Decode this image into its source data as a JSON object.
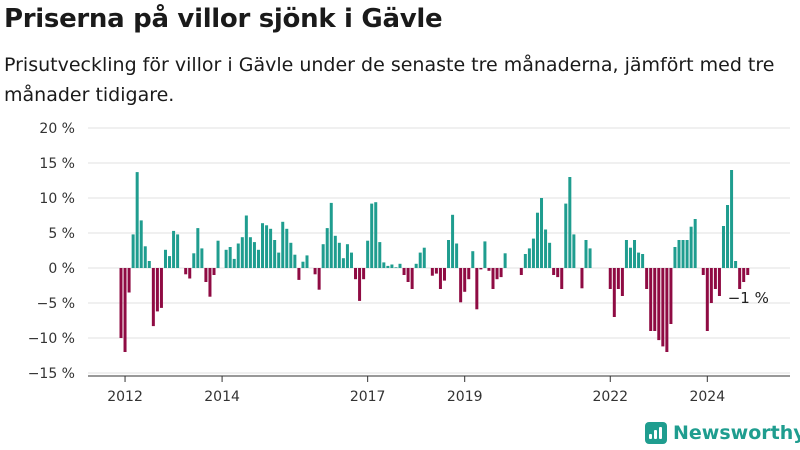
{
  "header": {
    "title": "Priserna på villor sjönk i Gävle",
    "subtitle": "Prisutveckling för villor i Gävle under de senaste tre månaderna, jämfört med tre månader tidigare."
  },
  "brand": {
    "name": "Newsworthy",
    "color": "#1f9d8f",
    "icon": "bar-chart-logo-icon"
  },
  "chart_data": {
    "type": "bar",
    "ylim": [
      -15,
      20
    ],
    "yticks": [
      -15,
      -10,
      -5,
      0,
      5,
      10,
      15,
      20
    ],
    "ytick_labels": [
      "−15 %",
      "−10 %",
      "−5 %",
      "0 %",
      "5 %",
      "10 %",
      "15 %",
      "20 %"
    ],
    "xticks": [
      2012,
      2014,
      2017,
      2019,
      2022,
      2024
    ],
    "x_start": "2011-12",
    "grid": true,
    "colors": {
      "positive": "#1f9d8f",
      "negative": "#8f0b43"
    },
    "values": [
      -10,
      -12,
      -3.5,
      4.8,
      13.7,
      6.8,
      3.1,
      1,
      -8.3,
      -6.2,
      -5.7,
      2.6,
      1.7,
      5.3,
      4.8,
      0,
      -0.9,
      -1.5,
      2.1,
      5.7,
      2.8,
      -2,
      -4.1,
      -1,
      3.9,
      0,
      2.6,
      3,
      1.3,
      3.5,
      4.4,
      7.5,
      4.4,
      3.7,
      2.6,
      6.4,
      6.1,
      5.6,
      4,
      2.2,
      6.6,
      5.6,
      3.6,
      1.9,
      -1.7,
      0.9,
      1.8,
      0,
      -0.9,
      -3.1,
      3.4,
      5.7,
      9.3,
      4.6,
      3.6,
      1.4,
      3.4,
      2.2,
      -1.6,
      -4.7,
      -1.6,
      3.9,
      9.2,
      9.4,
      3.7,
      0.8,
      0.3,
      0.5,
      0.1,
      0.6,
      -1,
      -2,
      -3,
      0.6,
      2.2,
      2.9,
      0,
      -1.1,
      -0.8,
      -3,
      -1.8,
      4,
      7.6,
      3.5,
      -4.9,
      -3.4,
      -1.6,
      2.4,
      -5.9,
      -0.2,
      3.8,
      -0.4,
      -3,
      -1.6,
      -1.3,
      2.1,
      0,
      0,
      0,
      -1,
      2,
      2.8,
      4.2,
      7.9,
      10,
      5.5,
      3.6,
      -1,
      -1.3,
      -3,
      9.2,
      13,
      4.8,
      0,
      -2.9,
      4,
      2.8,
      0,
      0,
      0,
      0,
      -3,
      -7,
      -3,
      -4,
      4,
      2.9,
      4,
      2.2,
      2,
      -3,
      -9,
      -9,
      -10.3,
      -11.2,
      -12,
      -8,
      3,
      4,
      4,
      4,
      5.9,
      7,
      0,
      -1,
      -9,
      -5,
      -3,
      -4,
      6,
      9,
      14,
      1,
      -3,
      -2,
      -1
    ],
    "last_value_label": "−1 %"
  }
}
